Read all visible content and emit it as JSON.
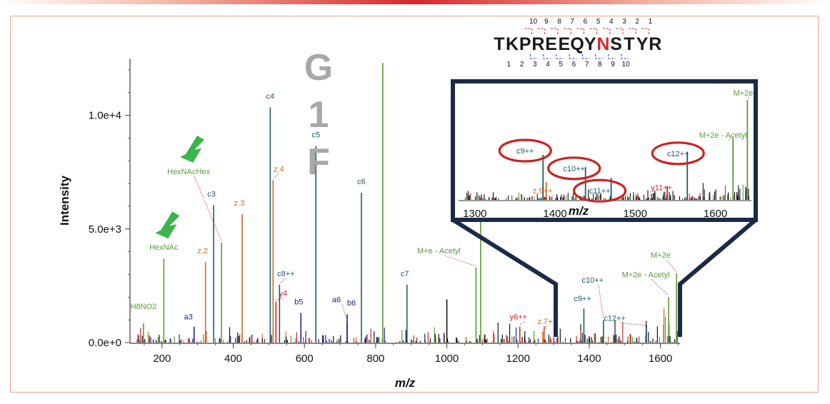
{
  "chart_data": {
    "type": "spectrum",
    "title_letters": [
      "G",
      "1",
      "F"
    ],
    "xlabel": "m/z",
    "ylabel": "Intensity",
    "xlim": [
      110,
      1655
    ],
    "ylim": [
      0,
      12500
    ],
    "x_ticks": [
      200,
      400,
      600,
      800,
      1000,
      1200,
      1400,
      1600
    ],
    "y_ticks": [
      {
        "value": 0,
        "label": "0.0e+0"
      },
      {
        "value": 5000,
        "label": "5.0e+3"
      },
      {
        "value": 10000,
        "label": "1.0e+4"
      }
    ],
    "colors": {
      "c": "#1e5a70",
      "z": "#d06a20",
      "y": "#c8282a",
      "a": "#22228a",
      "b": "#22228a",
      "glyco": "#5a9a3a",
      "other": "#111111",
      "arrow": "#3bb54a",
      "inset_border": "#1c2a46",
      "circle": "#cc2222"
    },
    "peaks": [
      {
        "mz": 148,
        "intensity": 850,
        "ion": "glyco",
        "label": "H8NO2"
      },
      {
        "mz": 205,
        "intensity": 3700,
        "ion": "glyco",
        "label": "HexNAc"
      },
      {
        "mz": 290,
        "intensity": 700,
        "ion": "a",
        "label": "a3"
      },
      {
        "mz": 322,
        "intensity": 3550,
        "ion": "z",
        "label": "z.2"
      },
      {
        "mz": 345,
        "intensity": 6050,
        "ion": "c",
        "label": "c3"
      },
      {
        "mz": 367,
        "intensity": 4400,
        "ion": "glyco",
        "label": "HexNAcHex"
      },
      {
        "mz": 425,
        "intensity": 5650,
        "ion": "z",
        "label": "z.3"
      },
      {
        "mz": 504,
        "intensity": 10350,
        "ion": "c",
        "label": "c4"
      },
      {
        "mz": 512,
        "intensity": 7150,
        "ion": "z",
        "label": "z.4"
      },
      {
        "mz": 520,
        "intensity": 1800,
        "ion": "y",
        "label": "y4"
      },
      {
        "mz": 530,
        "intensity": 2550,
        "ion": "c",
        "label": "c8++"
      },
      {
        "mz": 590,
        "intensity": 1300,
        "ion": "b",
        "label": "b5"
      },
      {
        "mz": 632,
        "intensity": 8650,
        "ion": "c",
        "label": "c5"
      },
      {
        "mz": 720,
        "intensity": 900,
        "ion": "b",
        "label": "a6"
      },
      {
        "mz": 720,
        "intensity": 1250,
        "ion": "b",
        "label": "b6"
      },
      {
        "mz": 760,
        "intensity": 6600,
        "ion": "c",
        "label": "c6"
      },
      {
        "mz": 820,
        "intensity": 12300,
        "ion": "glyco",
        "label": ""
      },
      {
        "mz": 888,
        "intensity": 2550,
        "ion": "c",
        "label": "c7"
      },
      {
        "mz": 1000,
        "intensity": 1900,
        "ion": "other",
        "label": ""
      },
      {
        "mz": 1082,
        "intensity": 3300,
        "ion": "glyco",
        "label": "M+e - Acetyl"
      },
      {
        "mz": 1095,
        "intensity": 5600,
        "ion": "glyco",
        "label": ""
      },
      {
        "mz": 1205,
        "intensity": 700,
        "ion": "y",
        "label": "y6++"
      },
      {
        "mz": 1270,
        "intensity": 500,
        "ion": "z",
        "label": "z.7++"
      },
      {
        "mz": 1385,
        "intensity": 1500,
        "ion": "c",
        "label": "c9++"
      },
      {
        "mz": 1440,
        "intensity": 1000,
        "ion": "c",
        "label": "c10++"
      },
      {
        "mz": 1560,
        "intensity": 700,
        "ion": "c",
        "label": "c12++"
      },
      {
        "mz": 1623,
        "intensity": 2000,
        "ion": "glyco",
        "label": "M+2e - Acetyl"
      },
      {
        "mz": 1645,
        "intensity": 3050,
        "ion": "glyco",
        "label": "M+2e"
      }
    ],
    "arrows": [
      {
        "target": "HexNAc"
      },
      {
        "target": "HexNAcHex"
      }
    ],
    "inset": {
      "xlim": [
        1285,
        1645
      ],
      "x_ticks": [
        1300,
        1400,
        1500,
        1600
      ],
      "xlabel": "m/z",
      "peaks": [
        {
          "mz": 1385,
          "intensity": 0.45,
          "ion": "c",
          "label": "c9++",
          "circled": true
        },
        {
          "mz": 1389,
          "intensity": 0.18,
          "ion": "z",
          "label": "z.9++",
          "circled": false
        },
        {
          "mz": 1438,
          "intensity": 0.33,
          "ion": "c",
          "label": "c10++",
          "circled": true
        },
        {
          "mz": 1470,
          "intensity": 0.22,
          "ion": "c",
          "label": "c11++",
          "circled": true
        },
        {
          "mz": 1540,
          "intensity": 0.14,
          "ion": "y",
          "label": "y11++",
          "circled": false
        },
        {
          "mz": 1565,
          "intensity": 0.48,
          "ion": "c",
          "label": "c12++",
          "circled": true
        },
        {
          "mz": 1622,
          "intensity": 0.62,
          "ion": "glyco",
          "label": "M+2e - Acetyl",
          "circled": false
        },
        {
          "mz": 1640,
          "intensity": 1.0,
          "ion": "glyco",
          "label": "M+2e",
          "circled": false
        }
      ]
    },
    "sequence": {
      "residues": [
        "T",
        "K",
        "P",
        "R",
        "E",
        "E",
        "Q",
        "Y",
        "N",
        "S",
        "T",
        "Y",
        "R"
      ],
      "highlight_index": 8,
      "top_numbers": [
        "10",
        "9",
        "8",
        "7",
        "6",
        "5",
        "4",
        "3",
        "2",
        "1"
      ],
      "bottom_numbers": [
        "1",
        "2",
        "3",
        "4",
        "5",
        "6",
        "7",
        "8",
        "9",
        "10"
      ]
    }
  }
}
